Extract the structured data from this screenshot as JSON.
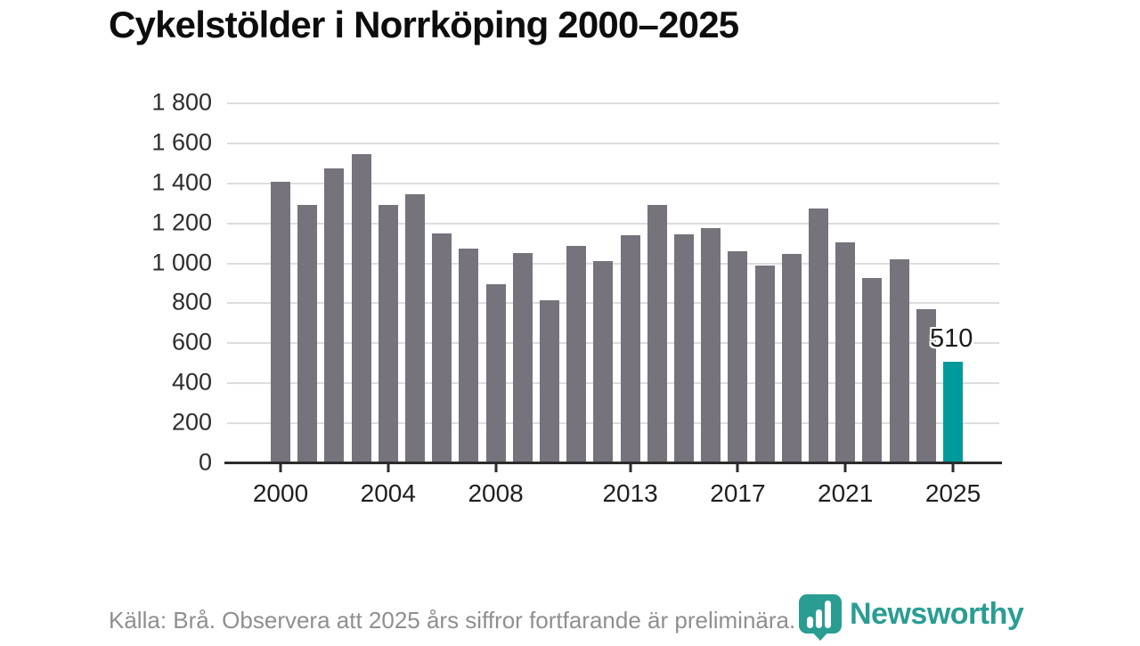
{
  "title": "Cykelstölder i Norrköping 2000–2025",
  "footer": {
    "source": "Källa: Brå. Observera att 2025 års siffror fortfarande är preliminära."
  },
  "logo": {
    "name": "Newsworthy",
    "icon": "newsworthy-pin-barchart-icon",
    "color": "#2a9d93"
  },
  "chart_data": {
    "type": "bar",
    "title": "Cykelstölder i Norrköping 2000–2025",
    "categories": [
      "2000",
      "2001",
      "2002",
      "2003",
      "2004",
      "2005",
      "2006",
      "2007",
      "2008",
      "2009",
      "2010",
      "2011",
      "2012",
      "2013",
      "2014",
      "2015",
      "2016",
      "2017",
      "2018",
      "2019",
      "2020",
      "2021",
      "2022",
      "2023",
      "2024",
      "2025"
    ],
    "values": [
      1410,
      1290,
      1475,
      1545,
      1290,
      1345,
      1150,
      1075,
      895,
      1050,
      815,
      1085,
      1010,
      1140,
      1290,
      1145,
      1175,
      1060,
      990,
      1045,
      1275,
      1105,
      925,
      1020,
      770,
      510
    ],
    "highlight_category": "2025",
    "annotation": {
      "category": "2025",
      "text": "510"
    },
    "xlabel": "",
    "ylabel": "",
    "ylim": [
      0,
      1800
    ],
    "y_tick_step": 200,
    "y_tick_labels": [
      "1 800",
      "1 600",
      "1 400",
      "1 200",
      "1 000",
      "800",
      "600",
      "400",
      "200",
      "0"
    ],
    "x_tick_labels": [
      "2000",
      "2004",
      "2008",
      "2013",
      "2017",
      "2021",
      "2025"
    ],
    "grid": true,
    "legend_position": "none",
    "colors": {
      "bar": "#76737d",
      "highlight": "#009a9c",
      "grid": "#dddddd",
      "axis": "#2c2c2c",
      "tick_label": "#2e2e2e"
    }
  }
}
